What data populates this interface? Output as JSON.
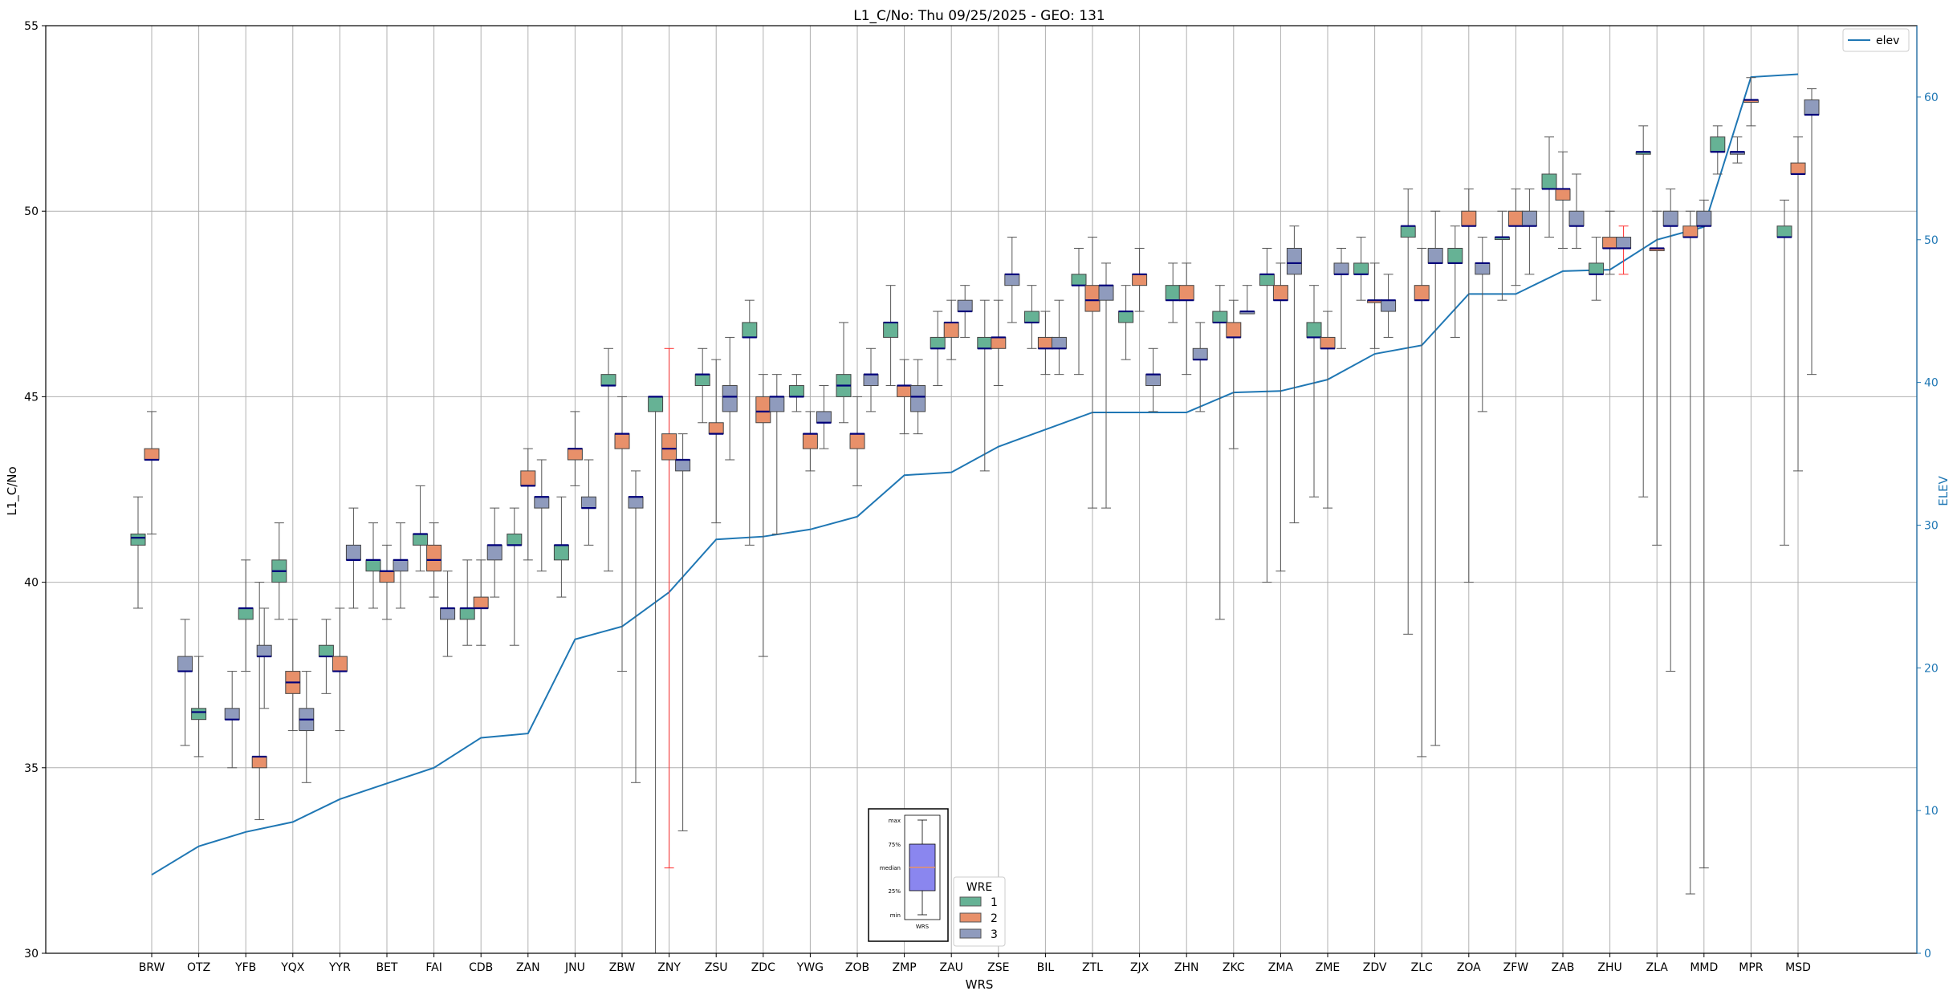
{
  "chart_data": {
    "type": "box",
    "title": "L1_C/No: Thu 09/25/2025 - GEO: 131",
    "xlabel": "WRS",
    "ylabel": "L1_C/No",
    "ylabel_right": "ELEV",
    "ylim": [
      30,
      55
    ],
    "ylim_right": [
      0,
      65
    ],
    "yticks": [
      30,
      35,
      40,
      45,
      50,
      55
    ],
    "yticks_right": [
      0,
      10,
      20,
      30,
      40,
      50,
      60
    ],
    "grid": true,
    "legend_line": {
      "label": "elev",
      "color": "#1f77b4",
      "placement": "top-right"
    },
    "legend_wre": {
      "title": "WRE",
      "placement": "bottom-center",
      "entries": [
        {
          "label": "1",
          "color": "#66b295"
        },
        {
          "label": "2",
          "color": "#e8906a"
        },
        {
          "label": "3",
          "color": "#8f9bbd"
        }
      ]
    },
    "inset_legend": {
      "labels": [
        "max",
        "75%",
        "median",
        "25%",
        "min"
      ],
      "caption": "WRS"
    },
    "categories": [
      "BRW",
      "OTZ",
      "YFB",
      "YQX",
      "YYR",
      "BET",
      "FAI",
      "CDB",
      "ZAN",
      "JNU",
      "ZBW",
      "ZNY",
      "ZSU",
      "ZDC",
      "YWG",
      "ZOB",
      "ZMP",
      "ZAU",
      "ZSE",
      "BIL",
      "ZTL",
      "ZJX",
      "ZHN",
      "ZKC",
      "ZMA",
      "ZME",
      "ZDV",
      "ZLC",
      "ZOA",
      "ZFW",
      "ZAB",
      "ZHU",
      "ZLA",
      "MMD",
      "MPR",
      "MSD"
    ],
    "elev": [
      5.5,
      7.5,
      8.5,
      9.2,
      10.8,
      11.9,
      13.0,
      15.1,
      15.4,
      22.0,
      22.9,
      25.3,
      29.0,
      29.2,
      29.7,
      30.6,
      33.5,
      33.7,
      35.5,
      36.7,
      37.9,
      37.9,
      37.9,
      39.3,
      39.4,
      40.2,
      42.0,
      42.6,
      46.2,
      46.2,
      47.8,
      47.9,
      50.0,
      50.9,
      61.4,
      61.6
    ],
    "boxes": [
      {
        "station": "BRW",
        "wre": 1,
        "min": 39.3,
        "q1": 41.0,
        "median": 41.2,
        "q3": 41.3,
        "max": 42.3
      },
      {
        "station": "BRW",
        "wre": 2,
        "min": 41.3,
        "q1": 43.3,
        "median": 43.3,
        "q3": 43.6,
        "max": 44.6
      },
      {
        "station": "OTZ",
        "wre": 3,
        "min": 35.6,
        "q1": 37.6,
        "median": 37.6,
        "q3": 38.0,
        "max": 39.0
      },
      {
        "station": "OTZ",
        "wre": 1,
        "min": 35.3,
        "q1": 36.3,
        "median": 36.5,
        "q3": 36.6,
        "max": 38.0
      },
      {
        "station": "YFB",
        "wre": 3,
        "min": 35.0,
        "q1": 36.3,
        "median": 36.3,
        "q3": 36.6,
        "max": 37.6
      },
      {
        "station": "YFB",
        "wre": 1,
        "min": 37.6,
        "q1": 39.0,
        "median": 39.3,
        "q3": 39.3,
        "max": 40.6
      },
      {
        "station": "YFB",
        "wre": 2,
        "min": 33.6,
        "q1": 35.0,
        "median": 35.3,
        "q3": 35.3,
        "max": 40.0
      },
      {
        "station": "YFB",
        "wre": 3,
        "min": 36.6,
        "q1": 38.0,
        "median": 38.0,
        "q3": 38.3,
        "max": 39.3
      },
      {
        "station": "YQX",
        "wre": 1,
        "min": 39.0,
        "q1": 40.0,
        "median": 40.3,
        "q3": 40.6,
        "max": 41.6
      },
      {
        "station": "YQX",
        "wre": 2,
        "min": 36.0,
        "q1": 37.0,
        "median": 37.3,
        "q3": 37.6,
        "max": 39.0
      },
      {
        "station": "YQX",
        "wre": 3,
        "min": 34.6,
        "q1": 36.0,
        "median": 36.3,
        "q3": 36.6,
        "max": 37.6
      },
      {
        "station": "YYR",
        "wre": 1,
        "min": 37.0,
        "q1": 38.0,
        "median": 38.0,
        "q3": 38.3,
        "max": 39.0
      },
      {
        "station": "YYR",
        "wre": 2,
        "min": 36.0,
        "q1": 37.6,
        "median": 37.6,
        "q3": 38.0,
        "max": 39.3
      },
      {
        "station": "YYR",
        "wre": 3,
        "min": 39.3,
        "q1": 40.6,
        "median": 40.6,
        "q3": 41.0,
        "max": 42.0
      },
      {
        "station": "BET",
        "wre": 1,
        "min": 39.3,
        "q1": 40.3,
        "median": 40.6,
        "q3": 40.6,
        "max": 41.6
      },
      {
        "station": "BET",
        "wre": 2,
        "min": 39.0,
        "q1": 40.0,
        "median": 40.3,
        "q3": 40.3,
        "max": 41.0
      },
      {
        "station": "BET",
        "wre": 3,
        "min": 39.3,
        "q1": 40.3,
        "median": 40.6,
        "q3": 40.6,
        "max": 41.6
      },
      {
        "station": "FAI",
        "wre": 1,
        "min": 40.3,
        "q1": 41.0,
        "median": 41.3,
        "q3": 41.3,
        "max": 42.6
      },
      {
        "station": "FAI",
        "wre": 2,
        "min": 39.6,
        "q1": 40.3,
        "median": 40.6,
        "q3": 41.0,
        "max": 41.6
      },
      {
        "station": "FAI",
        "wre": 3,
        "min": 38.0,
        "q1": 39.0,
        "median": 39.3,
        "q3": 39.3,
        "max": 40.3
      },
      {
        "station": "CDB",
        "wre": 1,
        "min": 38.3,
        "q1": 39.0,
        "median": 39.3,
        "q3": 39.3,
        "max": 40.6
      },
      {
        "station": "CDB",
        "wre": 2,
        "min": 38.3,
        "q1": 39.3,
        "median": 39.3,
        "q3": 39.6,
        "max": 40.6
      },
      {
        "station": "CDB",
        "wre": 3,
        "min": 39.6,
        "q1": 40.6,
        "median": 41.0,
        "q3": 41.0,
        "max": 42.0
      },
      {
        "station": "ZAN",
        "wre": 1,
        "min": 38.3,
        "q1": 41.0,
        "median": 41.0,
        "q3": 41.3,
        "max": 42.0
      },
      {
        "station": "ZAN",
        "wre": 2,
        "min": 40.6,
        "q1": 42.6,
        "median": 42.6,
        "q3": 43.0,
        "max": 43.6
      },
      {
        "station": "ZAN",
        "wre": 3,
        "min": 40.3,
        "q1": 42.0,
        "median": 42.3,
        "q3": 42.3,
        "max": 43.3
      },
      {
        "station": "JNU",
        "wre": 1,
        "min": 39.6,
        "q1": 40.6,
        "median": 41.0,
        "q3": 41.0,
        "max": 42.3
      },
      {
        "station": "JNU",
        "wre": 2,
        "min": 42.6,
        "q1": 43.3,
        "median": 43.6,
        "q3": 43.6,
        "max": 44.6
      },
      {
        "station": "JNU",
        "wre": 3,
        "min": 41.0,
        "q1": 42.0,
        "median": 42.0,
        "q3": 42.3,
        "max": 43.3
      },
      {
        "station": "ZBW",
        "wre": 1,
        "min": 40.3,
        "q1": 45.3,
        "median": 45.3,
        "q3": 45.6,
        "max": 46.3
      },
      {
        "station": "ZBW",
        "wre": 2,
        "min": 37.6,
        "q1": 43.6,
        "median": 44.0,
        "q3": 44.0,
        "max": 45.0
      },
      {
        "station": "ZBW",
        "wre": 3,
        "min": 34.6,
        "q1": 42.0,
        "median": 42.3,
        "q3": 42.3,
        "max": 43.0
      },
      {
        "station": "ZNY",
        "wre": 1,
        "min": 30.0,
        "q1": 44.6,
        "median": 45.0,
        "q3": 45.0,
        "max": 45.0
      },
      {
        "station": "ZNY",
        "wre": 2,
        "min": 32.3,
        "q1": 43.3,
        "median": 43.6,
        "q3": 44.0,
        "max": 46.3,
        "outlier": true
      },
      {
        "station": "ZNY",
        "wre": 3,
        "min": 33.3,
        "q1": 43.0,
        "median": 43.3,
        "q3": 43.3,
        "max": 44.0
      },
      {
        "station": "ZSU",
        "wre": 1,
        "min": 44.3,
        "q1": 45.3,
        "median": 45.6,
        "q3": 45.6,
        "max": 46.3
      },
      {
        "station": "ZSU",
        "wre": 2,
        "min": 41.6,
        "q1": 44.0,
        "median": 44.0,
        "q3": 44.3,
        "max": 46.0
      },
      {
        "station": "ZSU",
        "wre": 3,
        "min": 43.3,
        "q1": 44.6,
        "median": 45.0,
        "q3": 45.3,
        "max": 46.6
      },
      {
        "station": "ZDC",
        "wre": 1,
        "min": 41.0,
        "q1": 46.6,
        "median": 46.6,
        "q3": 47.0,
        "max": 47.6
      },
      {
        "station": "ZDC",
        "wre": 2,
        "min": 38.0,
        "q1": 44.3,
        "median": 44.6,
        "q3": 45.0,
        "max": 45.6
      },
      {
        "station": "ZDC",
        "wre": 3,
        "min": 41.3,
        "q1": 44.6,
        "median": 45.0,
        "q3": 45.0,
        "max": 45.6
      },
      {
        "station": "YWG",
        "wre": 1,
        "min": 44.6,
        "q1": 45.0,
        "median": 45.0,
        "q3": 45.3,
        "max": 45.6
      },
      {
        "station": "YWG",
        "wre": 2,
        "min": 43.0,
        "q1": 43.6,
        "median": 44.0,
        "q3": 44.0,
        "max": 44.6
      },
      {
        "station": "YWG",
        "wre": 3,
        "min": 43.6,
        "q1": 44.3,
        "median": 44.3,
        "q3": 44.6,
        "max": 45.3
      },
      {
        "station": "ZOB",
        "wre": 1,
        "min": 44.3,
        "q1": 45.0,
        "median": 45.3,
        "q3": 45.6,
        "max": 47.0
      },
      {
        "station": "ZOB",
        "wre": 2,
        "min": 42.6,
        "q1": 43.6,
        "median": 44.0,
        "q3": 44.0,
        "max": 45.0
      },
      {
        "station": "ZOB",
        "wre": 3,
        "min": 44.6,
        "q1": 45.3,
        "median": 45.6,
        "q3": 45.6,
        "max": 46.3
      },
      {
        "station": "ZMP",
        "wre": 1,
        "min": 45.3,
        "q1": 46.6,
        "median": 47.0,
        "q3": 47.0,
        "max": 48.0
      },
      {
        "station": "ZMP",
        "wre": 2,
        "min": 44.0,
        "q1": 45.0,
        "median": 45.3,
        "q3": 45.3,
        "max": 46.0
      },
      {
        "station": "ZMP",
        "wre": 3,
        "min": 44.0,
        "q1": 44.6,
        "median": 45.0,
        "q3": 45.3,
        "max": 46.0
      },
      {
        "station": "ZAU",
        "wre": 1,
        "min": 45.3,
        "q1": 46.3,
        "median": 46.3,
        "q3": 46.6,
        "max": 47.3
      },
      {
        "station": "ZAU",
        "wre": 2,
        "min": 46.0,
        "q1": 46.6,
        "median": 47.0,
        "q3": 47.0,
        "max": 47.6
      },
      {
        "station": "ZAU",
        "wre": 3,
        "min": 46.6,
        "q1": 47.3,
        "median": 47.3,
        "q3": 47.6,
        "max": 48.0
      },
      {
        "station": "ZSE",
        "wre": 1,
        "min": 43.0,
        "q1": 46.3,
        "median": 46.3,
        "q3": 46.6,
        "max": 47.6
      },
      {
        "station": "ZSE",
        "wre": 2,
        "min": 45.3,
        "q1": 46.3,
        "median": 46.6,
        "q3": 46.6,
        "max": 47.6
      },
      {
        "station": "ZSE",
        "wre": 3,
        "min": 47.0,
        "q1": 48.0,
        "median": 48.3,
        "q3": 48.3,
        "max": 49.3
      },
      {
        "station": "BIL",
        "wre": 1,
        "min": 46.3,
        "q1": 47.0,
        "median": 47.0,
        "q3": 47.3,
        "max": 48.0
      },
      {
        "station": "BIL",
        "wre": 2,
        "min": 45.6,
        "q1": 46.3,
        "median": 46.3,
        "q3": 46.6,
        "max": 47.3
      },
      {
        "station": "BIL",
        "wre": 3,
        "min": 45.6,
        "q1": 46.3,
        "median": 46.3,
        "q3": 46.6,
        "max": 47.6
      },
      {
        "station": "ZTL",
        "wre": 1,
        "min": 45.6,
        "q1": 48.0,
        "median": 48.0,
        "q3": 48.3,
        "max": 49.0
      },
      {
        "station": "ZTL",
        "wre": 2,
        "min": 42.0,
        "q1": 47.3,
        "median": 47.6,
        "q3": 48.0,
        "max": 49.3
      },
      {
        "station": "ZTL",
        "wre": 3,
        "min": 42.0,
        "q1": 47.6,
        "median": 48.0,
        "q3": 48.0,
        "max": 48.6
      },
      {
        "station": "ZJX",
        "wre": 1,
        "min": 46.0,
        "q1": 47.0,
        "median": 47.3,
        "q3": 47.3,
        "max": 48.0
      },
      {
        "station": "ZJX",
        "wre": 2,
        "min": 47.3,
        "q1": 48.0,
        "median": 48.3,
        "q3": 48.3,
        "max": 49.0
      },
      {
        "station": "ZJX",
        "wre": 3,
        "min": 44.6,
        "q1": 45.3,
        "median": 45.6,
        "q3": 45.6,
        "max": 46.3
      },
      {
        "station": "ZHN",
        "wre": 1,
        "min": 47.0,
        "q1": 47.6,
        "median": 47.6,
        "q3": 48.0,
        "max": 48.6
      },
      {
        "station": "ZHN",
        "wre": 2,
        "min": 45.6,
        "q1": 47.6,
        "median": 47.6,
        "q3": 48.0,
        "max": 48.6
      },
      {
        "station": "ZHN",
        "wre": 3,
        "min": 44.6,
        "q1": 46.0,
        "median": 46.0,
        "q3": 46.3,
        "max": 47.0
      },
      {
        "station": "ZKC",
        "wre": 1,
        "min": 39.0,
        "q1": 47.0,
        "median": 47.0,
        "q3": 47.3,
        "max": 48.0
      },
      {
        "station": "ZKC",
        "wre": 2,
        "min": 43.6,
        "q1": 46.6,
        "median": 46.6,
        "q3": 47.0,
        "max": 47.6
      },
      {
        "station": "ZKC",
        "wre": 3,
        "min": 47.3,
        "q1": 47.3,
        "median": 47.3,
        "q3": 47.3,
        "max": 48.0
      },
      {
        "station": "ZMA",
        "wre": 1,
        "min": 40.0,
        "q1": 48.0,
        "median": 48.3,
        "q3": 48.3,
        "max": 49.0
      },
      {
        "station": "ZMA",
        "wre": 2,
        "min": 40.3,
        "q1": 47.6,
        "median": 47.6,
        "q3": 48.0,
        "max": 48.6
      },
      {
        "station": "ZMA",
        "wre": 3,
        "min": 41.6,
        "q1": 48.3,
        "median": 48.6,
        "q3": 49.0,
        "max": 49.6
      },
      {
        "station": "ZME",
        "wre": 1,
        "min": 42.3,
        "q1": 46.6,
        "median": 46.6,
        "q3": 47.0,
        "max": 48.0
      },
      {
        "station": "ZME",
        "wre": 2,
        "min": 42.0,
        "q1": 46.3,
        "median": 46.3,
        "q3": 46.6,
        "max": 47.3
      },
      {
        "station": "ZME",
        "wre": 3,
        "min": 46.3,
        "q1": 48.3,
        "median": 48.3,
        "q3": 48.6,
        "max": 49.0
      },
      {
        "station": "ZDV",
        "wre": 1,
        "min": 47.6,
        "q1": 48.3,
        "median": 48.3,
        "q3": 48.6,
        "max": 49.3
      },
      {
        "station": "ZDV",
        "wre": 2,
        "min": 46.3,
        "q1": 47.6,
        "median": 47.6,
        "q3": 47.6,
        "max": 48.6
      },
      {
        "station": "ZDV",
        "wre": 3,
        "min": 46.6,
        "q1": 47.3,
        "median": 47.6,
        "q3": 47.6,
        "max": 48.3
      },
      {
        "station": "ZLC",
        "wre": 1,
        "min": 38.6,
        "q1": 49.3,
        "median": 49.6,
        "q3": 49.6,
        "max": 50.6
      },
      {
        "station": "ZLC",
        "wre": 2,
        "min": 35.3,
        "q1": 47.6,
        "median": 47.6,
        "q3": 48.0,
        "max": 49.0
      },
      {
        "station": "ZLC",
        "wre": 3,
        "min": 35.6,
        "q1": 48.6,
        "median": 48.6,
        "q3": 49.0,
        "max": 50.0
      },
      {
        "station": "ZOA",
        "wre": 1,
        "min": 46.6,
        "q1": 48.6,
        "median": 48.6,
        "q3": 49.0,
        "max": 49.6
      },
      {
        "station": "ZOA",
        "wre": 2,
        "min": 40.0,
        "q1": 49.6,
        "median": 49.6,
        "q3": 50.0,
        "max": 50.6
      },
      {
        "station": "ZOA",
        "wre": 3,
        "min": 44.6,
        "q1": 48.3,
        "median": 48.6,
        "q3": 48.6,
        "max": 49.3
      },
      {
        "station": "ZFW",
        "wre": 1,
        "min": 47.6,
        "q1": 49.3,
        "median": 49.3,
        "q3": 49.3,
        "max": 50.0
      },
      {
        "station": "ZFW",
        "wre": 2,
        "min": 48.0,
        "q1": 49.6,
        "median": 49.6,
        "q3": 50.0,
        "max": 50.6
      },
      {
        "station": "ZFW",
        "wre": 3,
        "min": 48.3,
        "q1": 49.6,
        "median": 49.6,
        "q3": 50.0,
        "max": 50.6
      },
      {
        "station": "ZAB",
        "wre": 1,
        "min": 49.3,
        "q1": 50.6,
        "median": 50.6,
        "q3": 51.0,
        "max": 52.0
      },
      {
        "station": "ZAB",
        "wre": 2,
        "min": 49.0,
        "q1": 50.3,
        "median": 50.6,
        "q3": 50.6,
        "max": 51.6
      },
      {
        "station": "ZAB",
        "wre": 3,
        "min": 49.0,
        "q1": 49.6,
        "median": 49.6,
        "q3": 50.0,
        "max": 51.0
      },
      {
        "station": "ZHU",
        "wre": 1,
        "min": 47.6,
        "q1": 48.3,
        "median": 48.3,
        "q3": 48.6,
        "max": 49.3
      },
      {
        "station": "ZHU",
        "wre": 2,
        "min": 48.3,
        "q1": 49.0,
        "median": 49.0,
        "q3": 49.3,
        "max": 50.0
      },
      {
        "station": "ZHU",
        "wre": 3,
        "min": 48.3,
        "q1": 49.0,
        "median": 49.0,
        "q3": 49.3,
        "max": 49.6,
        "outlier": true
      },
      {
        "station": "ZLA",
        "wre": 1,
        "min": 42.3,
        "q1": 51.6,
        "median": 51.6,
        "q3": 51.6,
        "max": 52.3
      },
      {
        "station": "ZLA",
        "wre": 2,
        "min": 41.0,
        "q1": 49.0,
        "median": 49.0,
        "q3": 49.0,
        "max": 50.0
      },
      {
        "station": "ZLA",
        "wre": 3,
        "min": 37.6,
        "q1": 49.6,
        "median": 49.6,
        "q3": 50.0,
        "max": 50.6
      },
      {
        "station": "MMD",
        "wre": 2,
        "min": 31.6,
        "q1": 49.3,
        "median": 49.3,
        "q3": 49.6,
        "max": 50.0
      },
      {
        "station": "MMD",
        "wre": 3,
        "min": 32.3,
        "q1": 49.6,
        "median": 49.6,
        "q3": 50.0,
        "max": 50.3
      },
      {
        "station": "MMD",
        "wre": 1,
        "min": 51.0,
        "q1": 51.6,
        "median": 51.6,
        "q3": 52.0,
        "max": 52.3
      },
      {
        "station": "MPR",
        "wre": 3,
        "min": 51.3,
        "q1": 51.6,
        "median": 51.6,
        "q3": 51.6,
        "max": 52.0
      },
      {
        "station": "MPR",
        "wre": 2,
        "min": 52.3,
        "q1": 53.0,
        "median": 53.0,
        "q3": 53.0,
        "max": 53.6
      },
      {
        "station": "MSD",
        "wre": 1,
        "min": 41.0,
        "q1": 49.3,
        "median": 49.3,
        "q3": 49.6,
        "max": 50.3
      },
      {
        "station": "MSD",
        "wre": 2,
        "min": 43.0,
        "q1": 51.0,
        "median": 51.0,
        "q3": 51.3,
        "max": 52.0
      },
      {
        "station": "MSD",
        "wre": 3,
        "min": 45.6,
        "q1": 52.6,
        "median": 52.6,
        "q3": 53.0,
        "max": 53.3
      }
    ]
  }
}
